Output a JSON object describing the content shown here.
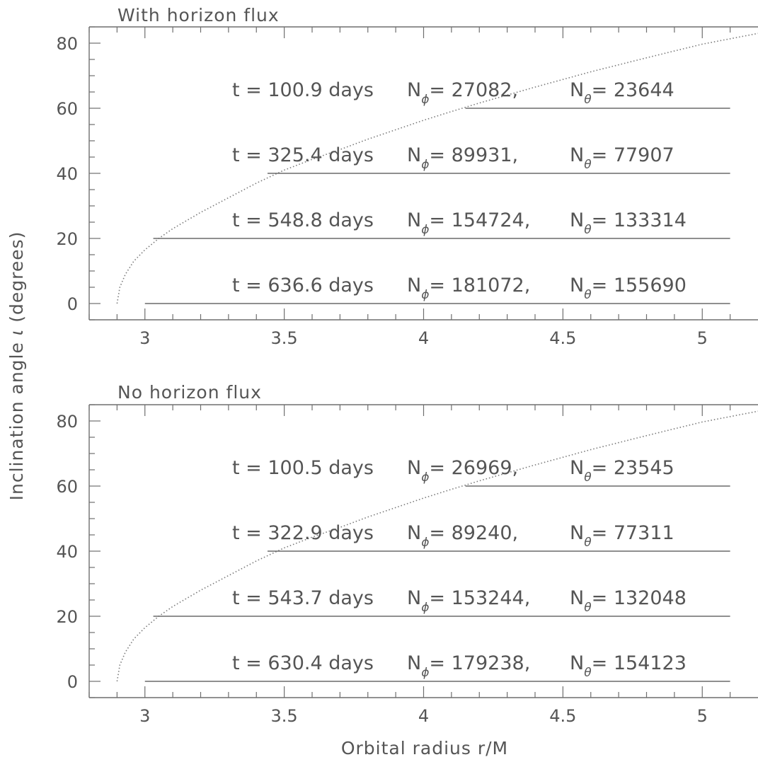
{
  "figure": {
    "ylabel_parts": [
      "Inclination angle ",
      "ι",
      " (degrees)"
    ],
    "xlabel": "Orbital radius r/M"
  },
  "chart_data": [
    {
      "type": "line",
      "title": "With horizon flux",
      "xlabel": "Orbital radius r/M",
      "ylabel": "Inclination angle ι (degrees)",
      "xlim": [
        2.8,
        5.2
      ],
      "ylim": [
        -5,
        85
      ],
      "xticks": [
        "3",
        "3.5",
        "4",
        "4.5",
        "5"
      ],
      "yticks": [
        "0",
        "20",
        "40",
        "60",
        "80"
      ],
      "x_tick_values": [
        3,
        3.5,
        4,
        4.5,
        5
      ],
      "y_tick_values": [
        0,
        20,
        40,
        60,
        80
      ],
      "curve": {
        "style": "dotted",
        "x": [
          2.9,
          2.91,
          2.93,
          2.96,
          3.0,
          3.05,
          3.1,
          3.2,
          3.3,
          3.4,
          3.5,
          3.6,
          3.7,
          3.8,
          3.9,
          4.0,
          4.1,
          4.2,
          4.4,
          4.6,
          4.8,
          5.0,
          5.2
        ],
        "y": [
          0,
          5,
          9,
          13,
          16.5,
          20,
          23,
          28,
          32.5,
          37,
          41,
          44.3,
          47.3,
          50.5,
          53.4,
          56.3,
          59,
          61.6,
          66.5,
          71.2,
          75.5,
          79.7,
          83
        ]
      },
      "series": [
        {
          "y": 60,
          "x_start": 4.15,
          "x_end": 5.1,
          "label": {
            "t": "t = 100.9 days",
            "nphi_pre": "N",
            "nphi_sub": "ϕ",
            "nphi_val": "= 27082,",
            "nth_pre": "N",
            "nth_sub": "θ",
            "nth_val": "= 23644"
          }
        },
        {
          "y": 40,
          "x_start": 3.44,
          "x_end": 5.1,
          "label": {
            "t": "t = 325.4 days",
            "nphi_pre": "N",
            "nphi_sub": "ϕ",
            "nphi_val": "= 89931,",
            "nth_pre": "N",
            "nth_sub": "θ",
            "nth_val": "= 77907"
          }
        },
        {
          "y": 20,
          "x_start": 3.03,
          "x_end": 5.1,
          "label": {
            "t": "t = 548.8 days",
            "nphi_pre": "N",
            "nphi_sub": "ϕ",
            "nphi_val": "= 154724,",
            "nth_pre": "N",
            "nth_sub": "θ",
            "nth_val": "= 133314"
          }
        },
        {
          "y": 0,
          "x_start": 3.0,
          "x_end": 5.1,
          "label": {
            "t": "t = 636.6 days",
            "nphi_pre": "N",
            "nphi_sub": "ϕ",
            "nphi_val": "= 181072,",
            "nth_pre": "N",
            "nth_sub": "θ",
            "nth_val": "= 155690"
          }
        }
      ]
    },
    {
      "type": "line",
      "title": "No horizon flux",
      "xlabel": "Orbital radius r/M",
      "ylabel": "Inclination angle ι (degrees)",
      "xlim": [
        2.8,
        5.2
      ],
      "ylim": [
        -5,
        85
      ],
      "xticks": [
        "3",
        "3.5",
        "4",
        "4.5",
        "5"
      ],
      "yticks": [
        "0",
        "20",
        "40",
        "60",
        "80"
      ],
      "x_tick_values": [
        3,
        3.5,
        4,
        4.5,
        5
      ],
      "y_tick_values": [
        0,
        20,
        40,
        60,
        80
      ],
      "curve": {
        "style": "dotted",
        "x": [
          2.9,
          2.91,
          2.93,
          2.96,
          3.0,
          3.05,
          3.1,
          3.2,
          3.3,
          3.4,
          3.5,
          3.6,
          3.7,
          3.8,
          3.9,
          4.0,
          4.1,
          4.2,
          4.4,
          4.6,
          4.8,
          5.0,
          5.2
        ],
        "y": [
          0,
          5,
          9,
          13,
          16.5,
          20,
          23,
          28,
          32.5,
          37,
          41,
          44.3,
          47.3,
          50.5,
          53.4,
          56.3,
          59,
          61.6,
          66.5,
          71.2,
          75.5,
          79.7,
          83
        ]
      },
      "series": [
        {
          "y": 60,
          "x_start": 4.15,
          "x_end": 5.1,
          "label": {
            "t": "t = 100.5 days",
            "nphi_pre": "N",
            "nphi_sub": "ϕ",
            "nphi_val": "= 26969,",
            "nth_pre": "N",
            "nth_sub": "θ",
            "nth_val": "= 23545"
          }
        },
        {
          "y": 40,
          "x_start": 3.44,
          "x_end": 5.1,
          "label": {
            "t": "t = 322.9 days",
            "nphi_pre": "N",
            "nphi_sub": "ϕ",
            "nphi_val": "= 89240,",
            "nth_pre": "N",
            "nth_sub": "θ",
            "nth_val": "= 77311"
          }
        },
        {
          "y": 20,
          "x_start": 3.03,
          "x_end": 5.1,
          "label": {
            "t": "t = 543.7 days",
            "nphi_pre": "N",
            "nphi_sub": "ϕ",
            "nphi_val": "= 153244,",
            "nth_pre": "N",
            "nth_sub": "θ",
            "nth_val": "= 132048"
          }
        },
        {
          "y": 0,
          "x_start": 3.0,
          "x_end": 5.1,
          "label": {
            "t": "t = 630.4 days",
            "nphi_pre": "N",
            "nphi_sub": "ϕ",
            "nphi_val": "= 179238,",
            "nth_pre": "N",
            "nth_sub": "θ",
            "nth_val": "= 154123"
          }
        }
      ]
    }
  ]
}
